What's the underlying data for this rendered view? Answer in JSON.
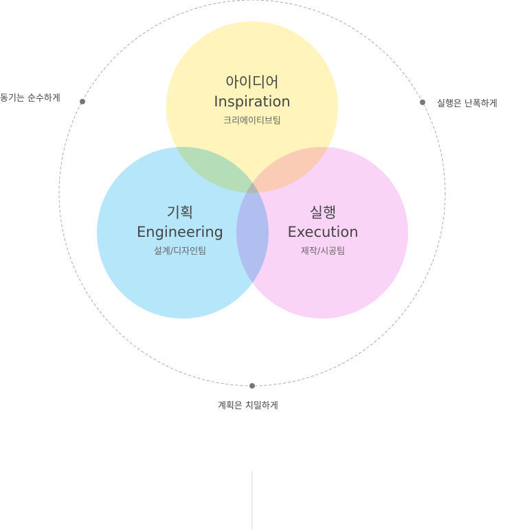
{
  "circles": {
    "idea": {
      "title": "아이디어",
      "subtitle": "Inspiration",
      "team": "크리에이티브팀",
      "color": "#fff4b8"
    },
    "plan": {
      "title": "기획",
      "subtitle": "Engineering",
      "team": "설계/디자인팀",
      "color": "#a8e2f8"
    },
    "exec": {
      "title": "실행",
      "subtitle": "Execution",
      "team": "제작/시공팀",
      "color": "#f9cdf4"
    }
  },
  "mottos": {
    "left": "동기는 순수하게",
    "right": "실행은 난폭하게",
    "bottom": "계획은 치밀하게"
  },
  "colors": {
    "ring": "#aaaaaa",
    "dot": "#777777",
    "divider": "#dddddd"
  }
}
